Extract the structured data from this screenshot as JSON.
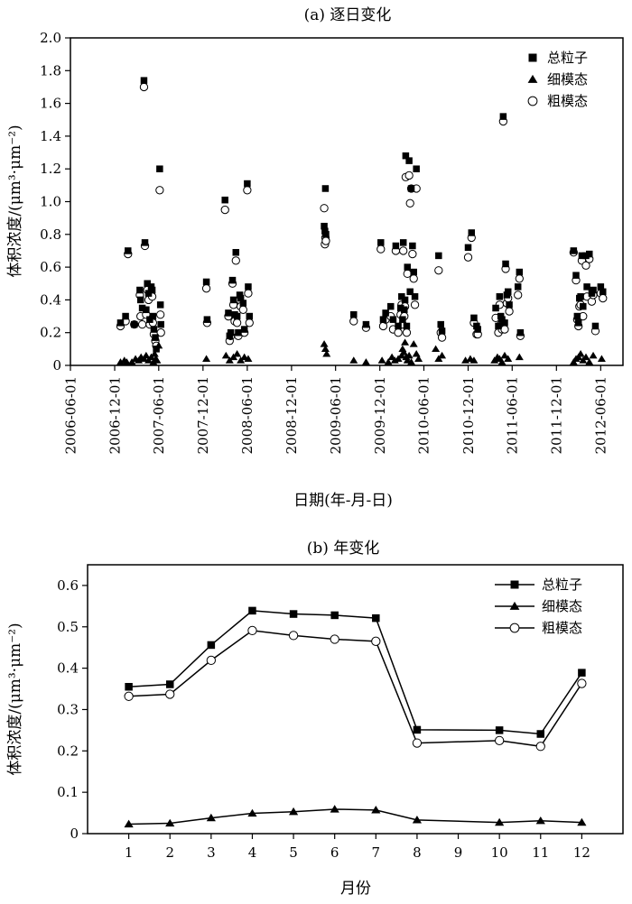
{
  "chart_data": [
    {
      "type": "scatter",
      "title": "(a) 逐日变化",
      "xlabel": "日期(年-月-日)",
      "ylabel": "体积浓度/(μm³·μm⁻²)",
      "ylim": [
        0,
        2.0
      ],
      "yticks": [
        "0",
        "0.2",
        "0.4",
        "0.6",
        "0.8",
        "1.0",
        "1.2",
        "1.4",
        "1.6",
        "1.8",
        "2.0"
      ],
      "xlim": [
        "2006-06-01",
        "2012-09-01"
      ],
      "xticks": [
        "2006-06-01",
        "2006-12-01",
        "2007-06-01",
        "2007-12-01",
        "2008-06-01",
        "2008-12-01",
        "2009-06-01",
        "2009-12-01",
        "2010-06-01",
        "2010-12-01",
        "2011-06-01",
        "2011-12-01",
        "2012-06-01"
      ],
      "grid": false,
      "legend_position": "top-right",
      "series": [
        {
          "name": "总粒子",
          "marker": "square-filled",
          "x": [
            "2006-12-25",
            "2007-01-15",
            "2007-01-25",
            "2007-02-20",
            "2007-03-15",
            "2007-03-18",
            "2007-03-25",
            "2007-04-01",
            "2007-04-05",
            "2007-04-10",
            "2007-04-15",
            "2007-04-20",
            "2007-04-25",
            "2007-05-01",
            "2007-05-05",
            "2007-05-08",
            "2007-05-12",
            "2007-05-18",
            "2007-05-22",
            "2007-06-05",
            "2007-06-08",
            "2007-06-10",
            "2007-12-15",
            "2007-12-18",
            "2008-03-01",
            "2008-03-15",
            "2008-03-20",
            "2008-03-25",
            "2008-04-01",
            "2008-04-05",
            "2008-04-10",
            "2008-04-15",
            "2008-04-20",
            "2008-04-25",
            "2008-05-01",
            "2008-05-05",
            "2008-05-15",
            "2008-05-20",
            "2008-06-01",
            "2008-06-05",
            "2008-06-10",
            "2009-04-15",
            "2009-04-18",
            "2009-04-20",
            "2009-04-22",
            "2009-08-15",
            "2009-10-05",
            "2009-12-05",
            "2009-12-15",
            "2009-12-25",
            "2010-01-15",
            "2010-01-25",
            "2010-02-05",
            "2010-02-15",
            "2010-02-25",
            "2010-03-01",
            "2010-03-05",
            "2010-03-08",
            "2010-03-12",
            "2010-03-15",
            "2010-03-18",
            "2010-03-22",
            "2010-03-25",
            "2010-04-01",
            "2010-04-05",
            "2010-04-10",
            "2010-04-15",
            "2010-04-20",
            "2010-04-25",
            "2010-05-01",
            "2010-08-01",
            "2010-08-10",
            "2010-08-15",
            "2010-12-01",
            "2010-12-15",
            "2010-12-25",
            "2011-01-05",
            "2011-01-10",
            "2011-03-25",
            "2011-04-05",
            "2011-04-10",
            "2011-04-15",
            "2011-04-20",
            "2011-04-25",
            "2011-05-01",
            "2011-05-05",
            "2011-05-10",
            "2011-05-15",
            "2011-05-20",
            "2011-06-25",
            "2011-07-01",
            "2011-07-05",
            "2012-02-10",
            "2012-02-20",
            "2012-02-25",
            "2012-03-01",
            "2012-03-05",
            "2012-03-10",
            "2012-03-15",
            "2012-03-20",
            "2012-04-01",
            "2012-04-05",
            "2012-04-15",
            "2012-04-25",
            "2012-05-01",
            "2012-05-10",
            "2012-06-01",
            "2012-06-10"
          ],
          "y": [
            0.26,
            0.3,
            0.7,
            0.25,
            0.46,
            0.4,
            0.35,
            1.74,
            0.75,
            0.34,
            0.5,
            0.44,
            0.28,
            0.48,
            0.46,
            0.3,
            0.22,
            0.17,
            0.1,
            1.2,
            0.37,
            0.25,
            0.51,
            0.28,
            1.01,
            0.32,
            0.18,
            0.2,
            0.52,
            0.4,
            0.31,
            0.69,
            0.3,
            0.2,
            0.43,
            0.41,
            0.38,
            0.22,
            1.11,
            0.48,
            0.3,
            0.85,
            0.82,
            1.08,
            0.8,
            0.31,
            0.25,
            0.75,
            0.28,
            0.32,
            0.36,
            0.28,
            0.73,
            0.24,
            0.35,
            0.42,
            0.28,
            0.75,
            0.34,
            0.4,
            1.28,
            0.24,
            0.6,
            1.25,
            0.45,
            1.08,
            0.73,
            0.57,
            0.42,
            1.2,
            0.67,
            0.25,
            0.21,
            0.72,
            0.81,
            0.29,
            0.24,
            0.22,
            0.35,
            0.24,
            0.42,
            0.3,
            0.28,
            1.52,
            0.26,
            0.62,
            0.43,
            0.45,
            0.37,
            0.48,
            0.57,
            0.2,
            0.7,
            0.55,
            0.3,
            0.26,
            0.41,
            0.42,
            0.67,
            0.36,
            0.67,
            0.48,
            0.68,
            0.44,
            0.46,
            0.24,
            0.48,
            0.45
          ]
        },
        {
          "name": "细模态",
          "marker": "triangle-filled",
          "x": [
            "2006-12-25",
            "2007-01-10",
            "2007-01-20",
            "2007-02-10",
            "2007-02-25",
            "2007-03-10",
            "2007-03-20",
            "2007-04-01",
            "2007-04-10",
            "2007-04-20",
            "2007-05-01",
            "2007-05-10",
            "2007-05-15",
            "2007-05-20",
            "2007-05-25",
            "2007-06-01",
            "2007-12-15",
            "2008-03-05",
            "2008-03-20",
            "2008-04-05",
            "2008-04-20",
            "2008-05-05",
            "2008-05-20",
            "2008-06-05",
            "2009-04-15",
            "2009-04-20",
            "2009-04-25",
            "2009-08-15",
            "2009-10-05",
            "2009-12-10",
            "2010-01-05",
            "2010-01-20",
            "2010-02-01",
            "2010-02-15",
            "2010-03-01",
            "2010-03-05",
            "2010-03-10",
            "2010-03-15",
            "2010-03-20",
            "2010-03-25",
            "2010-04-01",
            "2010-04-10",
            "2010-04-20",
            "2010-05-01",
            "2010-05-10",
            "2010-07-20",
            "2010-08-01",
            "2010-08-15",
            "2010-11-20",
            "2010-12-10",
            "2010-12-25",
            "2011-03-20",
            "2011-04-01",
            "2011-04-10",
            "2011-04-20",
            "2011-05-01",
            "2011-05-15",
            "2011-07-01",
            "2012-02-10",
            "2012-02-20",
            "2012-03-01",
            "2012-03-10",
            "2012-03-20",
            "2012-04-01",
            "2012-04-15",
            "2012-05-01",
            "2012-06-05"
          ],
          "y": [
            0.02,
            0.03,
            0.02,
            0.02,
            0.04,
            0.03,
            0.05,
            0.04,
            0.06,
            0.03,
            0.05,
            0.02,
            0.07,
            0.04,
            0.03,
            0.12,
            0.04,
            0.06,
            0.03,
            0.05,
            0.07,
            0.03,
            0.05,
            0.04,
            0.13,
            0.1,
            0.07,
            0.03,
            0.02,
            0.03,
            0.02,
            0.05,
            0.03,
            0.04,
            0.06,
            0.1,
            0.08,
            0.14,
            0.05,
            0.03,
            0.06,
            0.02,
            0.13,
            0.07,
            0.04,
            0.1,
            0.04,
            0.06,
            0.03,
            0.04,
            0.03,
            0.03,
            0.05,
            0.04,
            0.02,
            0.06,
            0.04,
            0.05,
            0.02,
            0.04,
            0.05,
            0.07,
            0.03,
            0.05,
            0.02,
            0.06,
            0.04
          ]
        },
        {
          "name": "粗模态",
          "marker": "circle-open",
          "x": [
            "2006-12-25",
            "2007-01-15",
            "2007-01-25",
            "2007-02-20",
            "2007-03-15",
            "2007-03-18",
            "2007-03-25",
            "2007-04-01",
            "2007-04-05",
            "2007-04-10",
            "2007-04-15",
            "2007-04-20",
            "2007-04-25",
            "2007-05-01",
            "2007-05-05",
            "2007-05-08",
            "2007-05-12",
            "2007-05-18",
            "2007-05-22",
            "2007-06-05",
            "2007-06-08",
            "2007-06-10",
            "2007-12-15",
            "2007-12-18",
            "2008-03-01",
            "2008-03-15",
            "2008-03-20",
            "2008-03-25",
            "2008-04-01",
            "2008-04-05",
            "2008-04-10",
            "2008-04-15",
            "2008-04-20",
            "2008-04-25",
            "2008-05-01",
            "2008-05-05",
            "2008-05-15",
            "2008-05-20",
            "2008-06-01",
            "2008-06-05",
            "2008-06-10",
            "2009-04-15",
            "2009-04-18",
            "2009-04-20",
            "2009-04-22",
            "2009-08-15",
            "2009-10-05",
            "2009-12-05",
            "2009-12-15",
            "2009-12-25",
            "2010-01-15",
            "2010-01-25",
            "2010-02-05",
            "2010-02-15",
            "2010-02-25",
            "2010-03-01",
            "2010-03-05",
            "2010-03-08",
            "2010-03-12",
            "2010-03-15",
            "2010-03-18",
            "2010-03-22",
            "2010-03-25",
            "2010-04-01",
            "2010-04-05",
            "2010-04-10",
            "2010-04-15",
            "2010-04-20",
            "2010-04-25",
            "2010-05-01",
            "2010-08-01",
            "2010-08-10",
            "2010-08-15",
            "2010-12-01",
            "2010-12-15",
            "2010-12-25",
            "2011-01-05",
            "2011-01-10",
            "2011-03-25",
            "2011-04-05",
            "2011-04-10",
            "2011-04-15",
            "2011-04-20",
            "2011-04-25",
            "2011-05-01",
            "2011-05-05",
            "2011-05-10",
            "2011-05-15",
            "2011-05-20",
            "2011-06-25",
            "2011-07-01",
            "2011-07-05",
            "2012-02-10",
            "2012-02-20",
            "2012-02-25",
            "2012-03-01",
            "2012-03-05",
            "2012-03-10",
            "2012-03-15",
            "2012-03-20",
            "2012-04-01",
            "2012-04-05",
            "2012-04-15",
            "2012-04-25",
            "2012-05-01",
            "2012-05-10",
            "2012-06-01",
            "2012-06-10"
          ],
          "y": [
            0.24,
            0.27,
            0.68,
            0.25,
            0.43,
            0.3,
            0.25,
            1.7,
            0.73,
            0.31,
            0.46,
            0.4,
            0.25,
            0.44,
            0.42,
            0.26,
            0.19,
            0.15,
            0.12,
            1.07,
            0.31,
            0.2,
            0.47,
            0.26,
            0.95,
            0.3,
            0.15,
            0.18,
            0.5,
            0.37,
            0.27,
            0.64,
            0.26,
            0.18,
            0.4,
            0.36,
            0.34,
            0.2,
            1.07,
            0.44,
            0.26,
            0.96,
            0.74,
            0.78,
            0.76,
            0.27,
            0.23,
            0.71,
            0.24,
            0.28,
            0.3,
            0.22,
            0.7,
            0.2,
            0.31,
            0.37,
            0.25,
            0.7,
            0.3,
            0.36,
            1.15,
            0.2,
            0.56,
            1.16,
            0.99,
            1.08,
            0.68,
            0.53,
            0.37,
            1.08,
            0.58,
            0.2,
            0.17,
            0.66,
            0.78,
            0.26,
            0.19,
            0.19,
            0.29,
            0.2,
            0.37,
            0.25,
            0.22,
            1.49,
            0.22,
            0.59,
            0.38,
            0.41,
            0.33,
            0.43,
            0.53,
            0.18,
            0.69,
            0.52,
            0.28,
            0.24,
            0.36,
            0.37,
            0.64,
            0.3,
            0.61,
            0.42,
            0.65,
            0.39,
            0.43,
            0.21,
            0.44,
            0.41
          ]
        }
      ]
    },
    {
      "type": "line",
      "title": "(b) 年变化",
      "xlabel": "月份",
      "ylabel": "体积浓度/(μm³·μm⁻²)",
      "ylim": [
        0,
        0.65
      ],
      "yticks": [
        "0",
        "0.1",
        "0.2",
        "0.3",
        "0.4",
        "0.5",
        "0.6"
      ],
      "xlim": [
        0,
        13
      ],
      "xticks": [
        "1",
        "2",
        "3",
        "4",
        "5",
        "6",
        "7",
        "8",
        "9",
        "10",
        "11",
        "12"
      ],
      "grid": false,
      "legend_position": "top-right",
      "series": [
        {
          "name": "总粒子",
          "marker": "square-filled",
          "x": [
            1,
            2,
            3,
            4,
            5,
            6,
            7,
            8,
            10,
            11,
            12
          ],
          "y": [
            0.355,
            0.361,
            0.456,
            0.539,
            0.531,
            0.528,
            0.521,
            0.251,
            0.25,
            0.241,
            0.389
          ]
        },
        {
          "name": "细模态",
          "marker": "triangle-filled",
          "x": [
            1,
            2,
            3,
            4,
            5,
            6,
            7,
            8,
            10,
            11,
            12
          ],
          "y": [
            0.023,
            0.025,
            0.038,
            0.049,
            0.053,
            0.059,
            0.057,
            0.033,
            0.027,
            0.031,
            0.027
          ]
        },
        {
          "name": "粗模态",
          "marker": "circle-open",
          "x": [
            1,
            2,
            3,
            4,
            5,
            6,
            7,
            8,
            10,
            11,
            12
          ],
          "y": [
            0.332,
            0.337,
            0.419,
            0.491,
            0.479,
            0.47,
            0.465,
            0.219,
            0.225,
            0.211,
            0.363
          ]
        }
      ]
    }
  ]
}
